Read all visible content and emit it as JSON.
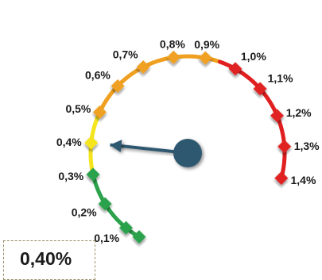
{
  "chart_data": {
    "type": "gauge",
    "caption": "",
    "ticks": [
      {
        "label": "0,1%",
        "value": 0.1
      },
      {
        "label": "0,2%",
        "value": 0.2
      },
      {
        "label": "0,3%",
        "value": 0.3
      },
      {
        "label": "0,4%",
        "value": 0.4
      },
      {
        "label": "0,5%",
        "value": 0.5
      },
      {
        "label": "0,6%",
        "value": 0.6
      },
      {
        "label": "0,7%",
        "value": 0.7
      },
      {
        "label": "0,8%",
        "value": 0.8
      },
      {
        "label": "0,9%",
        "value": 0.9
      },
      {
        "label": "1,0%",
        "value": 1.0
      },
      {
        "label": "1,1%",
        "value": 1.1
      },
      {
        "label": "1,2%",
        "value": 1.2
      },
      {
        "label": "1,3%",
        "value": 1.3
      },
      {
        "label": "1,4%",
        "value": 1.4
      }
    ],
    "min": 0.05,
    "max": 1.4,
    "needle_value": 0.4,
    "value_display": "0,40%",
    "colors": {
      "low": "#2ca24c",
      "mid_low": "#f5e51e",
      "mid_high": "#f0a020",
      "high": "#e02020",
      "needle": "#2f5970"
    }
  }
}
